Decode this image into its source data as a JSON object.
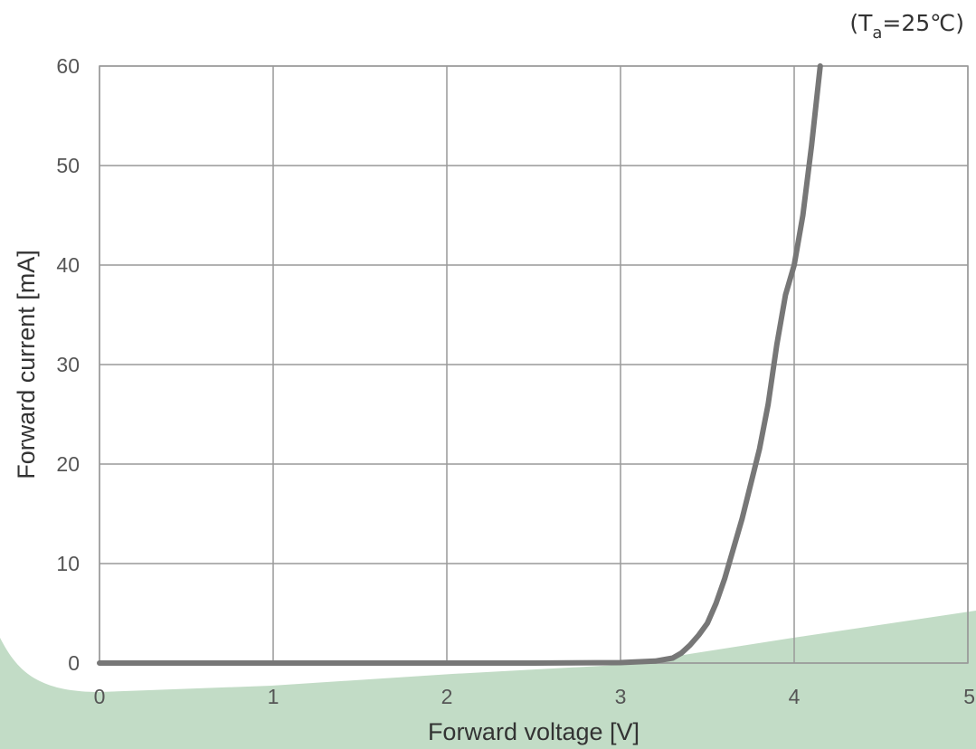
{
  "chart_data": {
    "type": "line",
    "annotation": {
      "open": "(T",
      "sub": "a",
      "close": "=25℃)"
    },
    "xlabel": "Forward voltage [V]",
    "ylabel": "Forward current [mA]",
    "xlim": [
      0,
      5
    ],
    "ylim": [
      0,
      60
    ],
    "x_ticks": [
      0,
      1,
      2,
      3,
      4,
      5
    ],
    "y_ticks": [
      0,
      10,
      20,
      30,
      40,
      50,
      60
    ],
    "grid": true,
    "line_color": "#777777",
    "grid_color": "#999999",
    "background_shape_color": "#c2dcc6",
    "series": [
      {
        "x": [
          0,
          1,
          2,
          2.5,
          3.0,
          3.2,
          3.3,
          3.35,
          3.4,
          3.45,
          3.5,
          3.55,
          3.6,
          3.65,
          3.7,
          3.75,
          3.8,
          3.85,
          3.9,
          3.95,
          4.0,
          4.05,
          4.1,
          4.15
        ],
        "y": [
          0,
          0,
          0,
          0,
          0.05,
          0.2,
          0.5,
          1.0,
          1.8,
          2.8,
          4.0,
          6.0,
          8.5,
          11.5,
          14.5,
          18.0,
          21.5,
          26.0,
          32.0,
          37.0,
          40.0,
          45.0,
          52.0,
          60.0
        ]
      }
    ]
  }
}
